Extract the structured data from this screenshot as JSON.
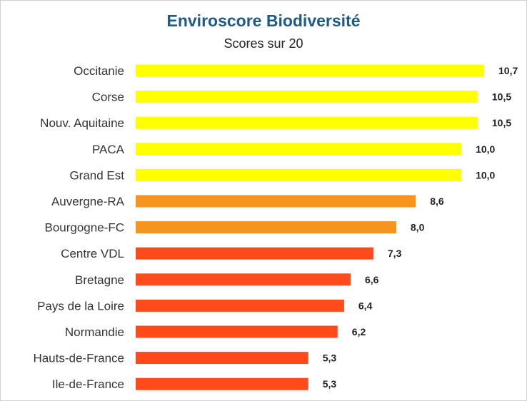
{
  "chart_data": {
    "type": "bar",
    "orientation": "horizontal",
    "title": "Enviroscore Biodiversité",
    "subtitle": "Scores sur 20",
    "categories": [
      "Occitanie",
      "Corse",
      "Nouv. Aquitaine",
      "PACA",
      "Grand Est",
      "Auvergne-RA",
      "Bourgogne-FC",
      "Centre VDL",
      "Bretagne",
      "Pays de la Loire",
      "Normandie",
      "Hauts-de-France",
      "Ile-de-France"
    ],
    "values": [
      10.7,
      10.5,
      10.5,
      10.0,
      10.0,
      8.6,
      8.0,
      7.3,
      6.6,
      6.4,
      6.2,
      5.3,
      5.3
    ],
    "value_labels": [
      "10,7",
      "10,5",
      "10,5",
      "10,0",
      "10,0",
      "8,6",
      "8,0",
      "7,3",
      "6,6",
      "6,4",
      "6,2",
      "5,3",
      "5,3"
    ],
    "bar_colors": [
      "#ffff00",
      "#ffff00",
      "#ffff00",
      "#ffff00",
      "#ffff00",
      "#f7941d",
      "#f7941d",
      "#ff4a1c",
      "#ff4a1c",
      "#ff4a1c",
      "#ff4a1c",
      "#ff4a1c",
      "#ff4a1c"
    ],
    "xlim": [
      0,
      10.7
    ],
    "grid": false,
    "legend": "none"
  },
  "colors": {
    "title": "#1f5a85",
    "high": "#ffff00",
    "medium": "#f7941d",
    "low": "#ff4a1c"
  }
}
